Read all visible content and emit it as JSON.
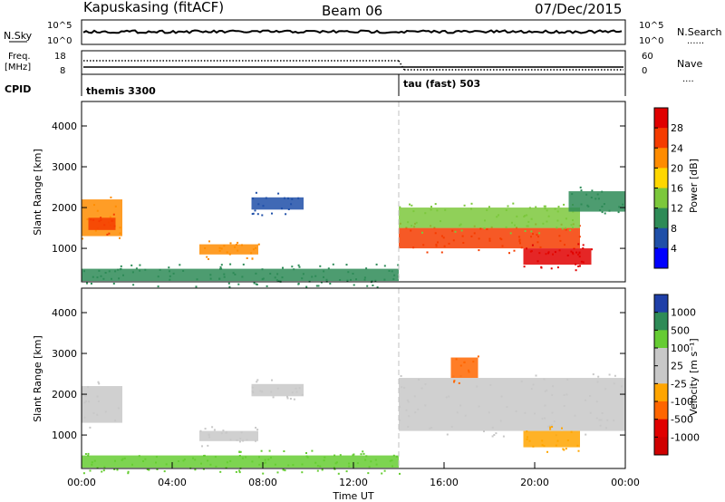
{
  "header": {
    "station": "Kapuskasing (fitACF)",
    "beam": "Beam 06",
    "date": "07/Dec/2015"
  },
  "summary_panel": {
    "left_top_label": "N.Sky",
    "left_ticks": [
      "10^5",
      "10^0"
    ],
    "right_ticks": [
      "10^5",
      "10^0"
    ],
    "right_label": "N.Search",
    "right_legend": "......"
  },
  "freq_panel": {
    "left_label_1": "Freq.",
    "left_label_2": "[MHz]",
    "left_ticks": [
      "18",
      "8"
    ],
    "right_ticks": [
      "60",
      "0"
    ],
    "right_label": "Nave",
    "right_legend": "...."
  },
  "cpid_panel": {
    "label": "CPID",
    "segments": [
      {
        "name": "themis 3300",
        "start_hour": 0
      },
      {
        "name": "tau (fast) 503",
        "start_hour": 14
      }
    ]
  },
  "chart_data": [
    {
      "type": "heatmap",
      "title": "",
      "quantity": "Power",
      "xlabel": "",
      "ylabel": "Slant Range [km]",
      "xlim_hours": [
        0,
        24
      ],
      "ylim_km": [
        180,
        4600
      ],
      "y_ticks": [
        "4000",
        "3000",
        "2000",
        "1000"
      ],
      "colorbar_label": "Power [dB]",
      "colorbar_ticks": [
        "28",
        "24",
        "20",
        "16",
        "12",
        "8",
        "4"
      ],
      "colorbar_colors": [
        "#e00000",
        "#f53c00",
        "#ff8c00",
        "#ffd700",
        "#7cc83c",
        "#2e8b57",
        "#1f4fa8",
        "#0000ff"
      ],
      "regions": [
        {
          "start_hour": 0.0,
          "end_hour": 1.8,
          "range_low": 1300,
          "range_high": 2200,
          "color": "#ff8c00"
        },
        {
          "start_hour": 0.3,
          "end_hour": 1.5,
          "range_low": 1450,
          "range_high": 1750,
          "color": "#f53c00"
        },
        {
          "start_hour": 5.2,
          "end_hour": 7.8,
          "range_low": 850,
          "range_high": 1100,
          "color": "#ff8c00"
        },
        {
          "start_hour": 7.5,
          "end_hour": 9.8,
          "range_low": 1950,
          "range_high": 2250,
          "color": "#1f4fa8"
        },
        {
          "start_hour": 14.0,
          "end_hour": 22.0,
          "range_low": 1000,
          "range_high": 1500,
          "color": "#f53c00"
        },
        {
          "start_hour": 14.0,
          "end_hour": 22.0,
          "range_low": 1500,
          "range_high": 2000,
          "color": "#7cc83c"
        },
        {
          "start_hour": 19.5,
          "end_hour": 22.5,
          "range_low": 600,
          "range_high": 1000,
          "color": "#e00000"
        },
        {
          "start_hour": 21.5,
          "end_hour": 24.0,
          "range_low": 1900,
          "range_high": 2400,
          "color": "#2e8b57"
        },
        {
          "start_hour": 0.0,
          "end_hour": 14.0,
          "range_low": 200,
          "range_high": 500,
          "color": "#2e8b57"
        }
      ]
    },
    {
      "type": "heatmap",
      "title": "",
      "quantity": "Velocity",
      "xlabel": "Time UT",
      "ylabel": "Slant Range [km]",
      "xlim_hours": [
        0,
        24
      ],
      "ylim_km": [
        180,
        4600
      ],
      "x_ticks": [
        "00:00",
        "04:00",
        "08:00",
        "12:00",
        "16:00",
        "20:00",
        "00:00"
      ],
      "y_ticks": [
        "4000",
        "3000",
        "2000",
        "1000"
      ],
      "colorbar_label": "Velocity [m s⁻¹]",
      "colorbar_ticks": [
        "1000",
        "500",
        "100",
        "25",
        "-25",
        "-100",
        "-500",
        "-1000"
      ],
      "colorbar_colors": [
        "#1f3fa8",
        "#2e8b57",
        "#66cc33",
        "#c8c8c8",
        "#c8c8c8",
        "#ffa500",
        "#ff6600",
        "#e00000",
        "#d00000"
      ],
      "regions": [
        {
          "start_hour": 0.0,
          "end_hour": 1.8,
          "range_low": 1300,
          "range_high": 2200,
          "color": "#c8c8c8"
        },
        {
          "start_hour": 5.2,
          "end_hour": 7.8,
          "range_low": 850,
          "range_high": 1100,
          "color": "#c8c8c8"
        },
        {
          "start_hour": 7.5,
          "end_hour": 9.8,
          "range_low": 1950,
          "range_high": 2250,
          "color": "#c8c8c8"
        },
        {
          "start_hour": 14.0,
          "end_hour": 24.0,
          "range_low": 1100,
          "range_high": 2400,
          "color": "#c8c8c8"
        },
        {
          "start_hour": 19.5,
          "end_hour": 22.0,
          "range_low": 700,
          "range_high": 1100,
          "color": "#ffa500"
        },
        {
          "start_hour": 0.0,
          "end_hour": 14.0,
          "range_low": 200,
          "range_high": 500,
          "color": "#66cc33"
        },
        {
          "start_hour": 16.3,
          "end_hour": 17.5,
          "range_low": 2400,
          "range_high": 2900,
          "color": "#ff6600"
        }
      ]
    }
  ]
}
